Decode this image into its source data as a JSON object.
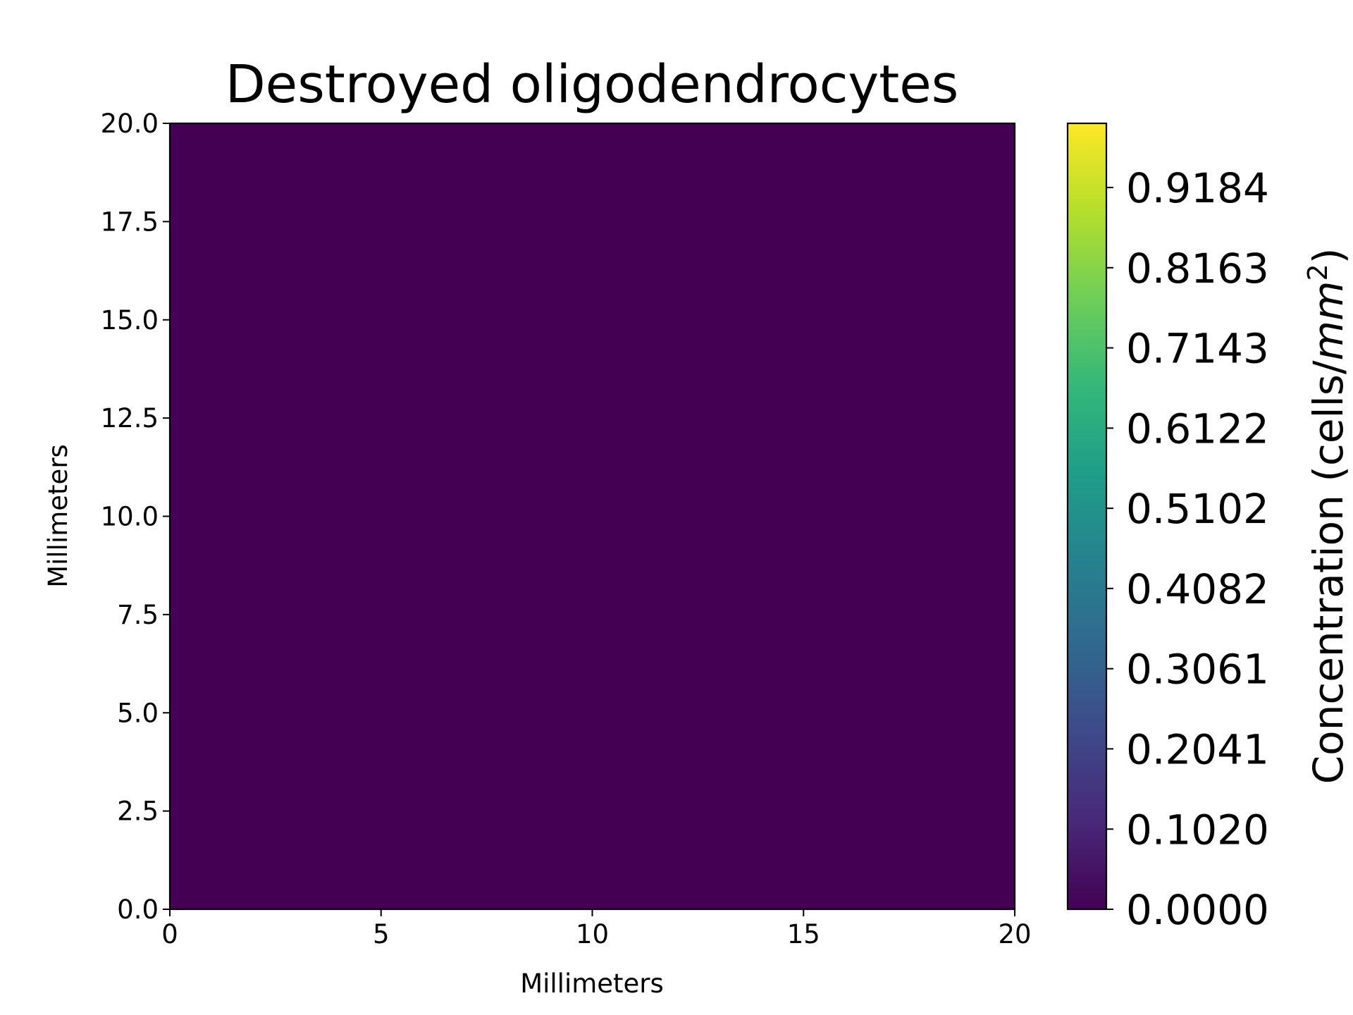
{
  "chart_data": {
    "type": "heatmap",
    "title": "Destroyed oligodendrocytes",
    "xlabel": "Millimeters",
    "ylabel": "Millimeters",
    "xlim": [
      0,
      20
    ],
    "ylim": [
      0,
      20
    ],
    "x_ticks": [
      "0",
      "5",
      "10",
      "15",
      "20"
    ],
    "y_ticks": [
      "0.0",
      "2.5",
      "5.0",
      "7.5",
      "10.0",
      "12.5",
      "15.0",
      "17.5",
      "20.0"
    ],
    "field_value": 0.0,
    "colormap": "viridis",
    "colorbar": {
      "label_prefix": "Concentration (cells/",
      "label_unit": "mm",
      "label_exp": "2",
      "label_suffix": ")",
      "range": [
        0,
        1
      ],
      "ticks": [
        "0.0000",
        "0.1020",
        "0.2041",
        "0.3061",
        "0.4082",
        "0.5102",
        "0.6122",
        "0.7143",
        "0.8163",
        "0.9184"
      ]
    },
    "colors": {
      "field": "#440154",
      "viridis_stops": [
        "#440154",
        "#482878",
        "#3e4989",
        "#31688e",
        "#26828e",
        "#1f9e89",
        "#35b779",
        "#6ece58",
        "#b5de2b",
        "#fde725"
      ]
    }
  }
}
